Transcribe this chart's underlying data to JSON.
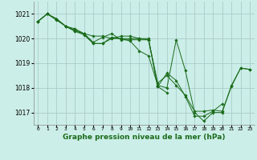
{
  "title": "Graphe pression niveau de la mer (hPa)",
  "bg_color": "#cceee8",
  "grid_color": "#aacccc",
  "line_color": "#1a6b1a",
  "marker_color": "#1a6b1a",
  "ylim": [
    1016.5,
    1021.5
  ],
  "yticks": [
    1017,
    1018,
    1019,
    1020,
    1021
  ],
  "series": [
    [
      1020.7,
      1021.0,
      1020.8,
      1020.5,
      1020.4,
      1020.2,
      1020.1,
      1020.1,
      1020.0,
      1020.0,
      1019.9,
      1019.5,
      1019.3,
      1018.1,
      1018.0,
      1019.95,
      1018.7,
      1017.0,
      1016.65,
      1017.0,
      1017.0,
      1018.1,
      1018.8,
      1018.75
    ],
    [
      1020.7,
      1021.0,
      1020.8,
      1020.5,
      1020.3,
      1020.15,
      1019.8,
      1019.8,
      1020.05,
      1020.0,
      1020.0,
      1020.0,
      1020.0,
      1018.05,
      1018.6,
      1018.3,
      1017.65,
      1016.85,
      1016.85,
      1017.05,
      1017.35,
      null,
      null,
      null
    ],
    [
      1020.7,
      1021.0,
      1020.8,
      1020.5,
      1020.3,
      1020.2,
      1019.8,
      1019.8,
      1020.0,
      1020.1,
      1020.1,
      1020.0,
      1019.95,
      1018.05,
      1017.8,
      null,
      null,
      null,
      null,
      null,
      null,
      null,
      null,
      null
    ],
    [
      1020.7,
      1021.0,
      1020.75,
      1020.5,
      1020.35,
      1020.2,
      1019.85,
      1020.05,
      1020.2,
      1019.95,
      1019.95,
      1019.95,
      1019.95,
      1018.2,
      1018.5,
      1018.1,
      1017.7,
      1017.05,
      1017.05,
      1017.1,
      1017.05,
      1018.05,
      1018.8,
      1018.75
    ]
  ],
  "xlabel_fontsize": 6.5,
  "ylabel_fontsize": 5.5,
  "xtick_fontsize": 4.5,
  "ytick_fontsize": 5.5
}
